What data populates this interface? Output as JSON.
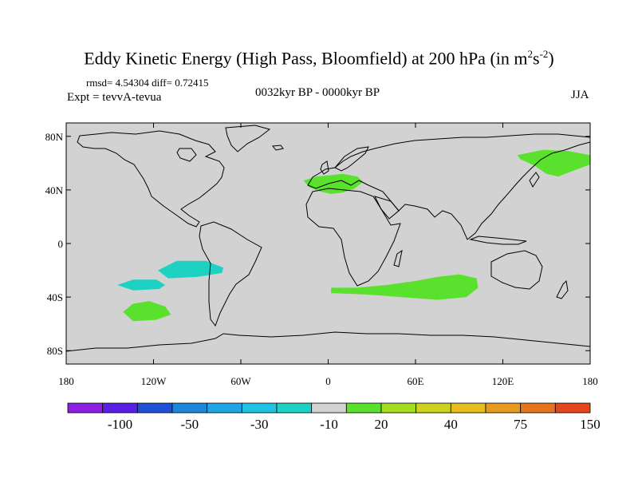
{
  "header": {
    "title": "Eddy Kinetic Energy (High Pass, Bloomfield) at 200 hPa (in m",
    "title_unit_sup1": "2",
    "title_unit_mid": "s",
    "title_unit_sup2": "-2",
    "title_close": ")",
    "stats": "rmsd= 4.54304 diff= 0.72415",
    "experiment": "Expt = tevvA-tevua",
    "period": "0032kyr BP - 0000kyr BP",
    "season": "JJA"
  },
  "map": {
    "projection": "cylindrical-equidistant",
    "background_color": "#d2d2d2",
    "coastline_color": "#000000",
    "lon_range": [
      -180,
      180
    ],
    "lat_range": [
      -90,
      90
    ],
    "y_ticks": [
      {
        "lat": 80,
        "label": "80N"
      },
      {
        "lat": 40,
        "label": "40N"
      },
      {
        "lat": 0,
        "label": "0"
      },
      {
        "lat": -40,
        "label": "40S"
      },
      {
        "lat": -80,
        "label": "80S"
      }
    ],
    "x_ticks": [
      {
        "lon": -180,
        "label": "180"
      },
      {
        "lon": -120,
        "label": "120W"
      },
      {
        "lon": -60,
        "label": "60W"
      },
      {
        "lon": 0,
        "label": "0"
      },
      {
        "lon": 60,
        "label": "60E"
      },
      {
        "lon": 120,
        "label": "120E"
      },
      {
        "lon": 180,
        "label": "180"
      }
    ],
    "anomaly_regions": [
      {
        "name": "north-atlantic-europe",
        "category": "positive-20",
        "color": "#5ae12d",
        "lonlat": [
          [
            -17,
            47
          ],
          [
            -8,
            50
          ],
          [
            2,
            51
          ],
          [
            10,
            52
          ],
          [
            20,
            50
          ],
          [
            24,
            46
          ],
          [
            18,
            41
          ],
          [
            10,
            38
          ],
          [
            2,
            37
          ],
          [
            -6,
            39
          ],
          [
            -13,
            42
          ]
        ]
      },
      {
        "name": "northwest-pacific",
        "category": "positive-20",
        "color": "#5ae12d",
        "lonlat": [
          [
            130,
            66
          ],
          [
            148,
            70
          ],
          [
            165,
            69
          ],
          [
            180,
            66
          ],
          [
            180,
            59
          ],
          [
            170,
            55
          ],
          [
            158,
            50
          ],
          [
            150,
            52
          ],
          [
            142,
            58
          ],
          [
            132,
            63
          ]
        ]
      },
      {
        "name": "south-indian-ocean",
        "category": "positive-20",
        "color": "#5ae12d",
        "lonlat": [
          [
            2,
            -33
          ],
          [
            20,
            -33
          ],
          [
            40,
            -31
          ],
          [
            60,
            -28
          ],
          [
            75,
            -25
          ],
          [
            90,
            -23
          ],
          [
            102,
            -26
          ],
          [
            103,
            -33
          ],
          [
            95,
            -40
          ],
          [
            75,
            -42
          ],
          [
            50,
            -40
          ],
          [
            25,
            -38
          ],
          [
            2,
            -37
          ]
        ]
      },
      {
        "name": "south-pacific-west",
        "category": "positive-20",
        "color": "#5ae12d",
        "lonlat": [
          [
            -141,
            -51
          ],
          [
            -134,
            -45
          ],
          [
            -123,
            -43
          ],
          [
            -112,
            -47
          ],
          [
            -108,
            -53
          ],
          [
            -118,
            -57
          ],
          [
            -134,
            -58
          ]
        ]
      },
      {
        "name": "south-pacific-east",
        "category": "negative-10",
        "color": "#1ed2c3",
        "lonlat": [
          [
            -117,
            -20
          ],
          [
            -104,
            -13
          ],
          [
            -84,
            -13
          ],
          [
            -72,
            -18
          ],
          [
            -73,
            -22
          ],
          [
            -90,
            -25
          ],
          [
            -110,
            -26
          ]
        ]
      },
      {
        "name": "south-pacific-central",
        "category": "negative-10",
        "color": "#1ed2c3",
        "lonlat": [
          [
            -145,
            -31
          ],
          [
            -134,
            -27
          ],
          [
            -118,
            -27
          ],
          [
            -112,
            -31
          ],
          [
            -116,
            -34
          ],
          [
            -134,
            -35
          ]
        ]
      }
    ]
  },
  "colorbar": {
    "colors": [
      "#8c1ee6",
      "#5a1ee6",
      "#1e50d7",
      "#1e87dc",
      "#1ea5e6",
      "#1ec3e1",
      "#1ed2c3",
      "#d2d2d2",
      "#5ae12d",
      "#a5dc1e",
      "#cdd21e",
      "#e6be1e",
      "#e69b1e",
      "#e6731e",
      "#e6461e"
    ],
    "labels": [
      {
        "boundary": 1.5,
        "text": "-100"
      },
      {
        "boundary": 3.5,
        "text": "-50"
      },
      {
        "boundary": 5.5,
        "text": "-30"
      },
      {
        "boundary": 7.5,
        "text": "-10"
      },
      {
        "boundary": 9,
        "text": "20"
      },
      {
        "boundary": 11,
        "text": "40"
      },
      {
        "boundary": 13,
        "text": "75"
      },
      {
        "boundary": 15,
        "text": "150"
      }
    ]
  }
}
